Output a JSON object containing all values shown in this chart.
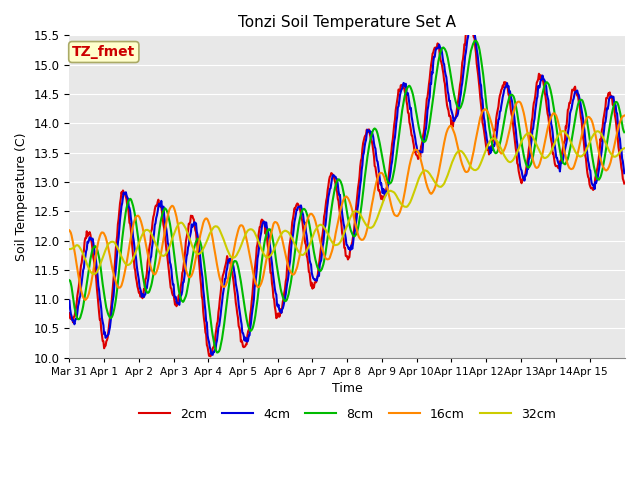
{
  "title": "Tonzi Soil Temperature Set A",
  "xlabel": "Time",
  "ylabel": "Soil Temperature (C)",
  "ylim": [
    10.0,
    15.5
  ],
  "yticks": [
    10.0,
    10.5,
    11.0,
    11.5,
    12.0,
    12.5,
    13.0,
    13.5,
    14.0,
    14.5,
    15.0,
    15.5
  ],
  "plot_bg_color": "#e8e8e8",
  "grid_color": "white",
  "annotation_text": "TZ_fmet",
  "annotation_color": "#cc0000",
  "annotation_bg": "#ffffcc",
  "legend_labels": [
    "2cm",
    "4cm",
    "8cm",
    "16cm",
    "32cm"
  ],
  "line_colors": [
    "#dd0000",
    "#0000dd",
    "#00bb00",
    "#ff8800",
    "#cccc00"
  ],
  "line_widths": [
    1.5,
    1.5,
    1.5,
    1.5,
    1.5
  ],
  "xtick_labels": [
    "Mar 31",
    "Apr 1",
    "Apr 2",
    "Apr 3",
    "Apr 4",
    "Apr 5",
    "Apr 6",
    "Apr 7",
    "Apr 8",
    "Apr 9",
    "Apr 10",
    "Apr 11",
    "Apr 12",
    "Apr 13",
    "Apr 14",
    "Apr 15"
  ],
  "n_days": 16,
  "figsize": [
    6.4,
    4.8
  ],
  "dpi": 100
}
